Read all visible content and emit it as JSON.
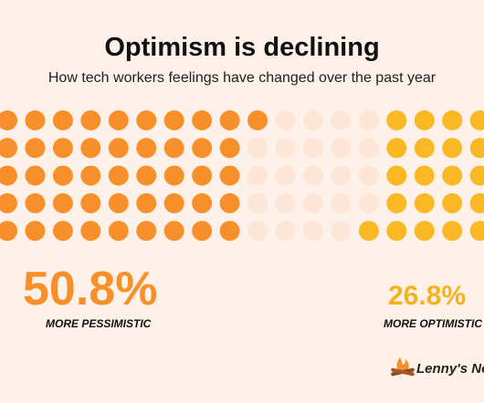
{
  "chart_data": {
    "type": "waffle",
    "title": "Optimism is declining",
    "subtitle": "How tech workers feelings have changed over the past year",
    "dots": [
      46,
      23,
      21
    ],
    "colors": [
      "#f7902a",
      "#fde6d6",
      "#f9b824"
    ],
    "stats": [
      {
        "value": 50.8,
        "value_label": "50.8%",
        "label": "MORE PESSIMISTIC",
        "color": "#f7902a"
      },
      {
        "value": 26.8,
        "value_label": "26.8%",
        "label": "MORE OPTIMISTIC",
        "color": "#f5b21d"
      }
    ]
  },
  "brand": "Lenny's Newsletter"
}
